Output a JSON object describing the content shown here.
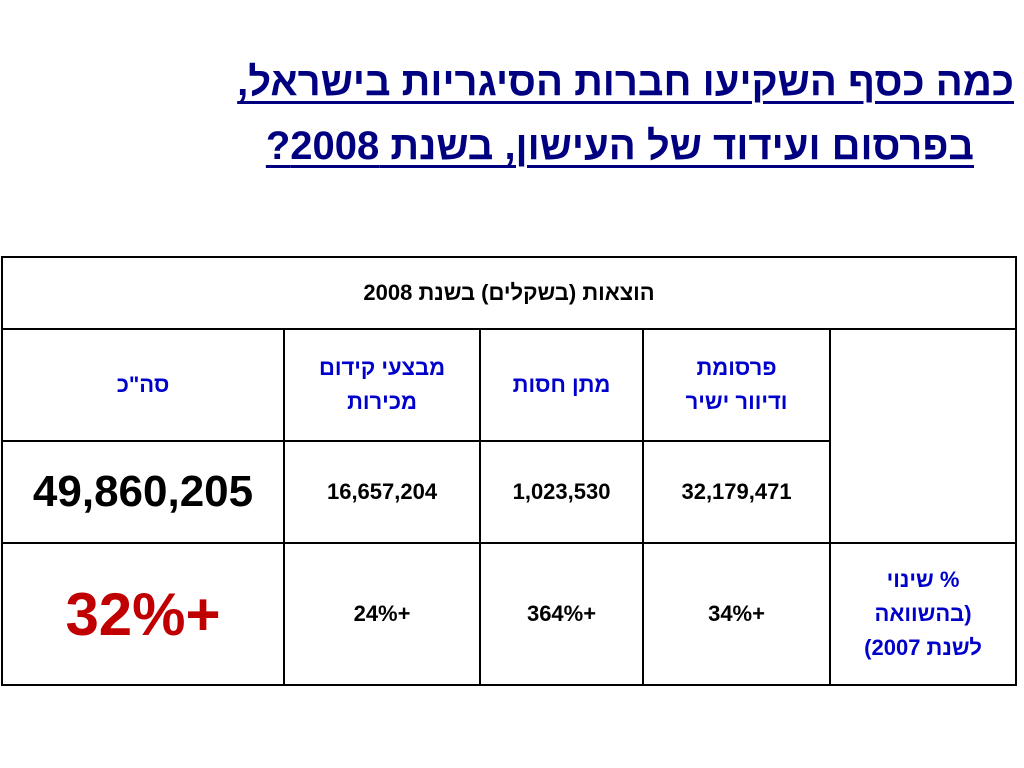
{
  "title": {
    "line1": "כמה כסף השקיעו חברות הסיגריות בישראל,",
    "line2": "בפרסום ועידוד של העישון, בשנת 2008?"
  },
  "table": {
    "header": "הוצאות (בשקלים) בשנת 2008",
    "columns": {
      "advertising_line1": "פרסומת",
      "advertising_line2": "ודיוור ישיר",
      "sponsorship": "מתן חסות",
      "promotions_line1": "מבצעי קידום",
      "promotions_line2": "מכירות",
      "total": "סה\"כ"
    },
    "values": {
      "advertising": "32,179,471",
      "sponsorship": "1,023,530",
      "promotions": "16,657,204",
      "total": "49,860,205"
    },
    "change_label": {
      "line1": "% שינוי",
      "line2": "(בהשוואה",
      "line3": "לשנת 2007)"
    },
    "changes": {
      "advertising": "+34%",
      "sponsorship": "+364%",
      "promotions": "+24%",
      "total": "+32%"
    }
  },
  "colors": {
    "title": "#000080",
    "column_header": "#0000cc",
    "total_change": "#c00000"
  }
}
